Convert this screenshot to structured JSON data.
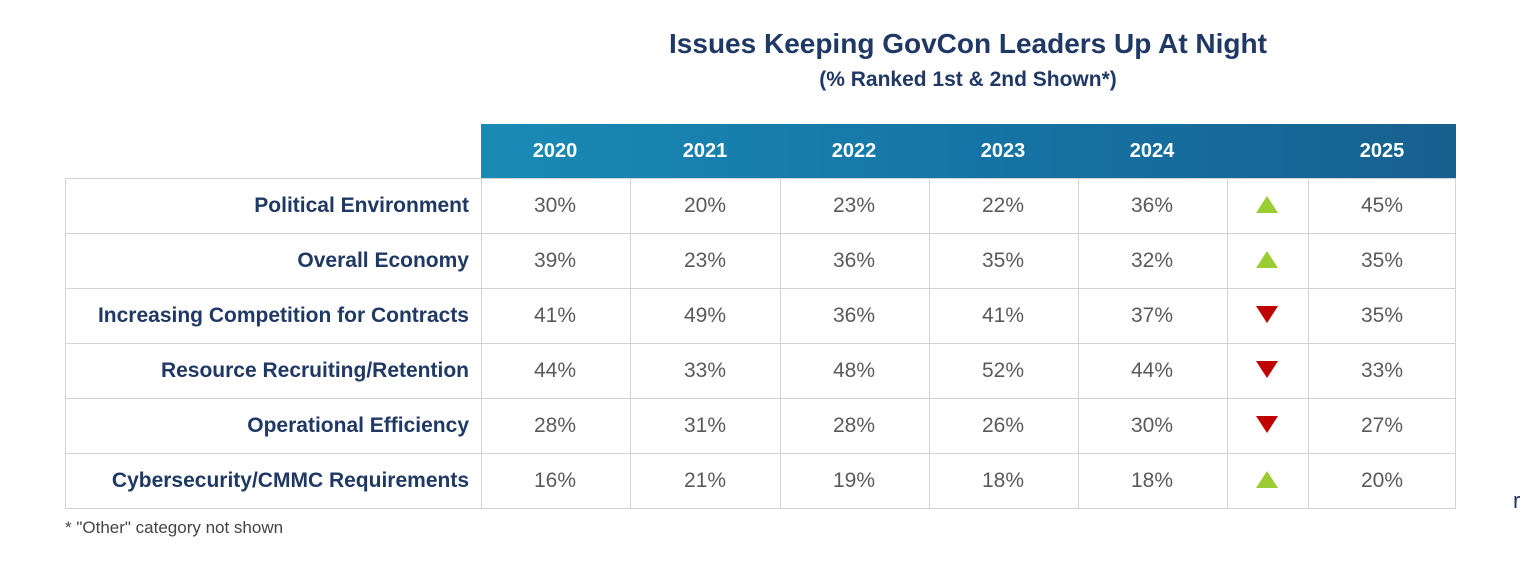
{
  "chart_data": {
    "type": "table",
    "title": "Issues Keeping GovCon Leaders Up At Night",
    "subtitle": "(% Ranked 1st & 2nd Shown*)",
    "columns": [
      "2020",
      "2021",
      "2022",
      "2023",
      "2024",
      "2025"
    ],
    "rows": [
      {
        "label": "Political Environment",
        "values": [
          "30%",
          "20%",
          "23%",
          "22%",
          "36%",
          "45%"
        ],
        "trend": "up"
      },
      {
        "label": "Overall Economy",
        "values": [
          "39%",
          "23%",
          "36%",
          "35%",
          "32%",
          "35%"
        ],
        "trend": "up"
      },
      {
        "label": "Increasing Competition for Contracts",
        "values": [
          "41%",
          "49%",
          "36%",
          "41%",
          "37%",
          "35%"
        ],
        "trend": "down"
      },
      {
        "label": "Resource Recruiting/Retention",
        "values": [
          "44%",
          "33%",
          "48%",
          "52%",
          "44%",
          "33%"
        ],
        "trend": "down"
      },
      {
        "label": "Operational Efficiency",
        "values": [
          "28%",
          "31%",
          "28%",
          "26%",
          "30%",
          "27%"
        ],
        "trend": "down"
      },
      {
        "label": "Cybersecurity/CMMC Requirements",
        "values": [
          "16%",
          "21%",
          "19%",
          "18%",
          "18%",
          "20%"
        ],
        "trend": "up"
      }
    ],
    "footnote": "* \"Other\" category not shown",
    "colors": {
      "up": "#9acd32",
      "down": "#c00000",
      "header": "#1577a8"
    }
  },
  "edge_text": "r"
}
